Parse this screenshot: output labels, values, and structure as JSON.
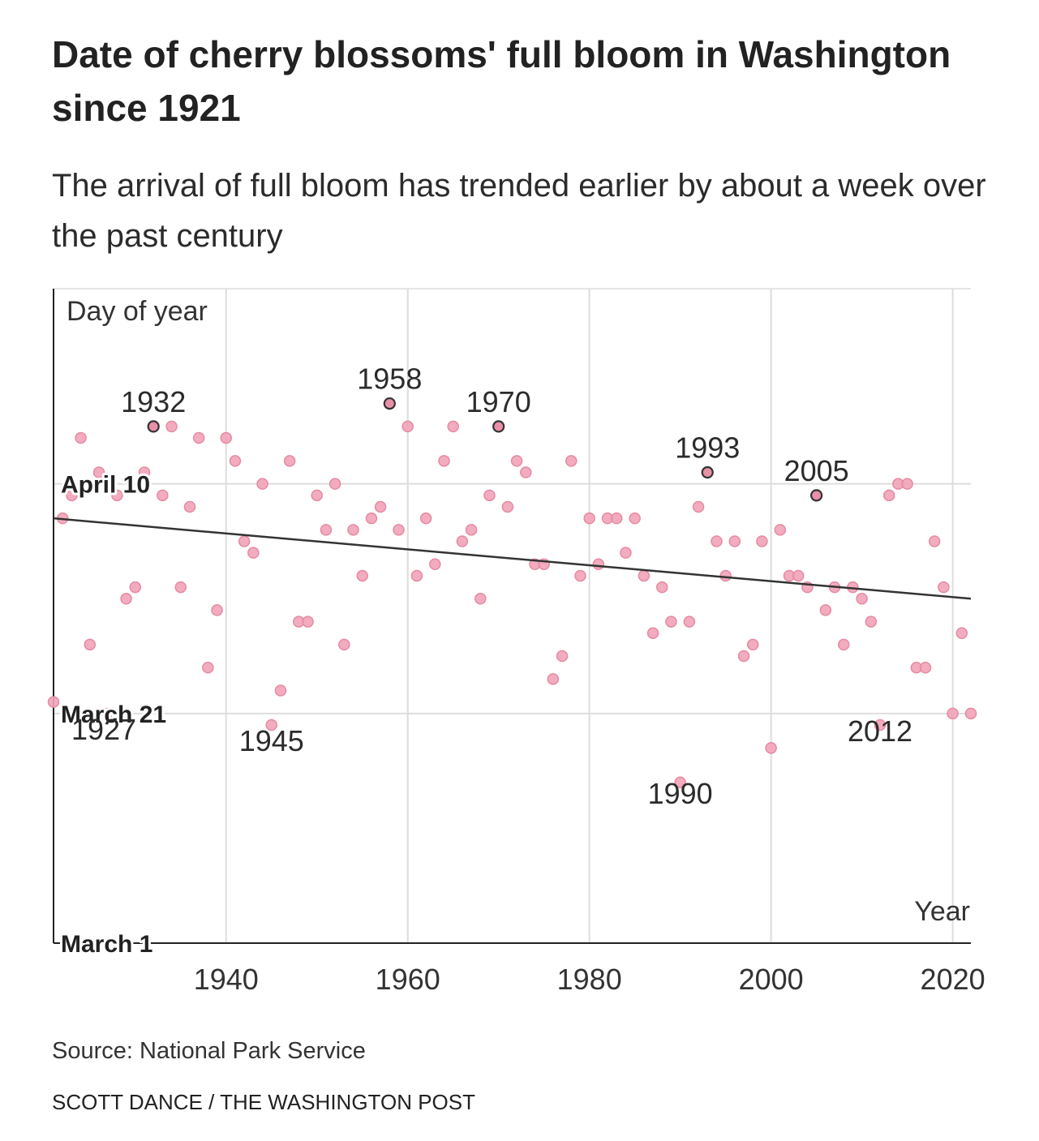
{
  "header": {
    "title": "Date of cherry blossoms' full bloom in Washington since 1921",
    "subtitle": "The arrival of full bloom has trended earlier by about a week over the past century"
  },
  "footer": {
    "source": "Source: National Park Service",
    "credit": "SCOTT DANCE / THE WASHINGTON POST"
  },
  "colors": {
    "point_fill": "#f2a3b8",
    "point_stroke": "#e58aa2",
    "highlight_fill": "#e990a9",
    "highlight_stroke": "#333333",
    "trend": "#333333",
    "grid": "#dddddd",
    "axis": "#222222"
  },
  "chart_data": {
    "type": "scatter",
    "title": "Date of cherry blossoms' full bloom in Washington since 1921",
    "subtitle": "The arrival of full bloom has trended earlier by about a week over the past century",
    "xlabel": "Year",
    "ylabel": "Day of year",
    "xlim": [
      1921,
      2022
    ],
    "ylim": [
      "March 1",
      "April 27"
    ],
    "x_ticks": [
      1940,
      1960,
      1980,
      2000,
      2020
    ],
    "y_ticks": [
      "March 1",
      "March 21",
      "April 10"
    ],
    "grid": true,
    "points": [
      {
        "x": 1921,
        "y": "March 22"
      },
      {
        "x": 1922,
        "y": "April 7"
      },
      {
        "x": 1923,
        "y": "April 9"
      },
      {
        "x": 1924,
        "y": "April 14"
      },
      {
        "x": 1925,
        "y": "March 27"
      },
      {
        "x": 1926,
        "y": "April 11"
      },
      {
        "x": 1927,
        "y": "March 21"
      },
      {
        "x": 1928,
        "y": "April 9"
      },
      {
        "x": 1929,
        "y": "March 31"
      },
      {
        "x": 1930,
        "y": "April 1"
      },
      {
        "x": 1931,
        "y": "April 11"
      },
      {
        "x": 1932,
        "y": "April 15"
      },
      {
        "x": 1933,
        "y": "April 9"
      },
      {
        "x": 1934,
        "y": "April 15"
      },
      {
        "x": 1935,
        "y": "April 1"
      },
      {
        "x": 1936,
        "y": "April 8"
      },
      {
        "x": 1937,
        "y": "April 14"
      },
      {
        "x": 1938,
        "y": "March 25"
      },
      {
        "x": 1939,
        "y": "March 30"
      },
      {
        "x": 1940,
        "y": "April 14"
      },
      {
        "x": 1941,
        "y": "April 12"
      },
      {
        "x": 1942,
        "y": "April 5"
      },
      {
        "x": 1943,
        "y": "April 4"
      },
      {
        "x": 1944,
        "y": "April 10"
      },
      {
        "x": 1945,
        "y": "March 20"
      },
      {
        "x": 1946,
        "y": "March 23"
      },
      {
        "x": 1947,
        "y": "April 12"
      },
      {
        "x": 1948,
        "y": "March 29"
      },
      {
        "x": 1949,
        "y": "March 29"
      },
      {
        "x": 1950,
        "y": "April 9"
      },
      {
        "x": 1951,
        "y": "April 6"
      },
      {
        "x": 1952,
        "y": "April 10"
      },
      {
        "x": 1953,
        "y": "March 27"
      },
      {
        "x": 1954,
        "y": "April 6"
      },
      {
        "x": 1955,
        "y": "April 2"
      },
      {
        "x": 1956,
        "y": "April 7"
      },
      {
        "x": 1957,
        "y": "April 8"
      },
      {
        "x": 1958,
        "y": "April 17"
      },
      {
        "x": 1959,
        "y": "April 6"
      },
      {
        "x": 1960,
        "y": "April 15"
      },
      {
        "x": 1961,
        "y": "April 2"
      },
      {
        "x": 1962,
        "y": "April 7"
      },
      {
        "x": 1963,
        "y": "April 3"
      },
      {
        "x": 1964,
        "y": "April 12"
      },
      {
        "x": 1965,
        "y": "April 15"
      },
      {
        "x": 1966,
        "y": "April 5"
      },
      {
        "x": 1967,
        "y": "April 6"
      },
      {
        "x": 1968,
        "y": "March 31"
      },
      {
        "x": 1969,
        "y": "April 9"
      },
      {
        "x": 1970,
        "y": "April 15"
      },
      {
        "x": 1971,
        "y": "April 8"
      },
      {
        "x": 1972,
        "y": "April 12"
      },
      {
        "x": 1973,
        "y": "April 11"
      },
      {
        "x": 1974,
        "y": "April 3"
      },
      {
        "x": 1975,
        "y": "April 3"
      },
      {
        "x": 1976,
        "y": "March 24"
      },
      {
        "x": 1977,
        "y": "March 26"
      },
      {
        "x": 1978,
        "y": "April 12"
      },
      {
        "x": 1979,
        "y": "April 2"
      },
      {
        "x": 1980,
        "y": "April 7"
      },
      {
        "x": 1981,
        "y": "April 3"
      },
      {
        "x": 1982,
        "y": "April 7"
      },
      {
        "x": 1983,
        "y": "April 7"
      },
      {
        "x": 1984,
        "y": "April 4"
      },
      {
        "x": 1985,
        "y": "April 7"
      },
      {
        "x": 1986,
        "y": "April 2"
      },
      {
        "x": 1987,
        "y": "March 28"
      },
      {
        "x": 1988,
        "y": "April 1"
      },
      {
        "x": 1989,
        "y": "March 29"
      },
      {
        "x": 1990,
        "y": "March 15"
      },
      {
        "x": 1991,
        "y": "March 29"
      },
      {
        "x": 1992,
        "y": "April 8"
      },
      {
        "x": 1993,
        "y": "April 11"
      },
      {
        "x": 1994,
        "y": "April 5"
      },
      {
        "x": 1995,
        "y": "April 2"
      },
      {
        "x": 1996,
        "y": "April 5"
      },
      {
        "x": 1997,
        "y": "March 26"
      },
      {
        "x": 1998,
        "y": "March 27"
      },
      {
        "x": 1999,
        "y": "April 5"
      },
      {
        "x": 2000,
        "y": "March 18"
      },
      {
        "x": 2001,
        "y": "April 6"
      },
      {
        "x": 2002,
        "y": "April 2"
      },
      {
        "x": 2003,
        "y": "April 2"
      },
      {
        "x": 2004,
        "y": "April 1"
      },
      {
        "x": 2005,
        "y": "April 9"
      },
      {
        "x": 2006,
        "y": "March 30"
      },
      {
        "x": 2007,
        "y": "April 1"
      },
      {
        "x": 2008,
        "y": "March 27"
      },
      {
        "x": 2009,
        "y": "April 1"
      },
      {
        "x": 2010,
        "y": "March 31"
      },
      {
        "x": 2011,
        "y": "March 29"
      },
      {
        "x": 2012,
        "y": "March 20"
      },
      {
        "x": 2013,
        "y": "April 9"
      },
      {
        "x": 2014,
        "y": "April 10"
      },
      {
        "x": 2015,
        "y": "April 10"
      },
      {
        "x": 2016,
        "y": "March 25"
      },
      {
        "x": 2017,
        "y": "March 25"
      },
      {
        "x": 2018,
        "y": "April 5"
      },
      {
        "x": 2019,
        "y": "April 1"
      },
      {
        "x": 2020,
        "y": "March 21"
      },
      {
        "x": 2021,
        "y": "March 28"
      },
      {
        "x": 2022,
        "y": "March 21"
      }
    ],
    "annotations": [
      {
        "x": 1927,
        "text": "1927"
      },
      {
        "x": 1932,
        "text": "1932"
      },
      {
        "x": 1945,
        "text": "1945"
      },
      {
        "x": 1958,
        "text": "1958"
      },
      {
        "x": 1970,
        "text": "1970"
      },
      {
        "x": 1990,
        "text": "1990"
      },
      {
        "x": 1993,
        "text": "1993"
      },
      {
        "x": 2005,
        "text": "2005"
      },
      {
        "x": 2012,
        "text": "2012"
      }
    ],
    "trend_line": {
      "from": {
        "x": 1921,
        "y": "April 7"
      },
      "to": {
        "x": 2022,
        "y": "March 31"
      }
    }
  }
}
